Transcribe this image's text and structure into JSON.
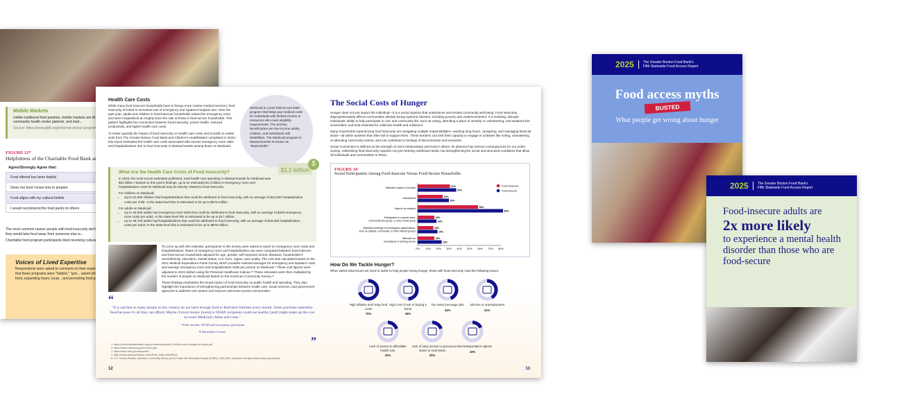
{
  "left_page": {
    "mobile_markets": {
      "title": "Mobile Markets",
      "text": "Unlike traditional food pantries, mobile markets are like... food directly into underserved communities, often foc... veterans, community health center patients, and stud...",
      "source": "Source: https://www.gbfb.org/what-we-do/our-programs/mobile-..."
    },
    "figure_label": "FIGURE 12*",
    "figure_title": "Helpfulness of the Charitable Food Bank and Community...",
    "table_header": "Agree/Strongly Agree that:",
    "rows": [
      "Food offered has been helpful",
      "Gives me food I know how to prepare",
      "Food aligns with my cultural beliefs",
      "I would recommend the food pantry to others"
    ],
    "text1": "The most common reason people with food insecurity don't... instead (60 percent). Of households with food insecurity that... are worried they would take food away from someone else w...",
    "text2": "Charitable food program participants liked receiving cultural... (79 percent), followed by proteins such as meat and fish (54...",
    "voices_title": "Voices of Lived Expertise",
    "voices_text": "Respondents were asked to comment on their experi... food programs, and how these services could be imp... commented that these programs were \"helpful,\" \"goo... asked what areas they would improve, responses foc... through providing more food, expanding hours, locat... and promoting food pantries to increase public aware..."
  },
  "page12": {
    "heading": "Health Care Costs",
    "p1": "While many food-insecure households have to forego more routine medical services, food insecurity is linked to increased use of emergency and inpatient hospital care. Over the past year, adults and children in food-insecure households visited the emergency room and were hospitalized at roughly twice the rate of those in food-secure households. This pattern highlights the connection between food insecurity, poorer health, reduced productivity, and higher health care costs.",
    "p2": "To better quantify the impact of food insecurity on health care costs and to build on earlier work from The Greater Boston Food Bank and Children's HealthWatch completed in 2018,⁷ this report estimated the health care costs associated with excess emergency room visits and hospitalizations due to food insecurity in Massachusetts among those on Medicaid.",
    "medicaid_note": "Medicaid is a joint federal and state program that helps pay medical costs for individuals with limited income or resources who meet eligibility requirements. The primary beneficiaries are low-income adults, children, and individuals with disabilities. The Medicaid program in Massachusetts is known as \"MassHealth.\"",
    "box_title": "What Are the Health Care Costs of Food Insecurity?",
    "box_amount": "$1.3 billion",
    "box_p1": "In 2023, the most recent estimates published, total health care spending in Massachusetts for Medicaid was $22 billion.⁸ Based on this year's findings, up to an estimated $1.3 billion in emergency room and hospitalization costs for Medicaid may be directly related to food insecurity.",
    "children_label": "For children on Medicaid:",
    "children_items": [
      "Up to 31,000 children had hospitalizations that could be attributed to food insecurity, with an average of $12,000 hospitalization costs per child. At the state-level this is estimated to be up to $373 million."
    ],
    "adults_label": "For adults on Medicaid:",
    "adults_items": [
      "Up to 40,000 adults had emergency room visits that could be attributed to food insecurity, with an average of $420 emergency room costs per adult. At the state-level this is estimated to be up to $17 million.",
      "Up to 48,700 adults had hospitalizations that could be attributed to food insecurity, with an average of $18,000 hospitalization costs per adult. At the state-level this is estimated to be up to $878 million."
    ],
    "p3": "To come up with this estimate, participants in this survey were asked to report on emergency room visits and hospitalizations. Rates of emergency room and hospitalization use were compared between food-insecure and food-secure households adjusted for age, gender, self-reported chronic diseases, householder's race/ethnicity, education, marital status, U.S.-born, region, and rurality. The cost was calculated based on the 2021 Medical Expenditure Panel Survey which provides national averages for emergency and inpatient costs and average emergency room and hospitalization visits per person on Medicaid.⁹ These cost figures were adjusted to 2023 dollars using the Personal Healthcare Indices.¹⁰ These estimates were then multiplied by the number of people on Medicaid based on the American Community Survey.¹¹",
    "p4": "These findings emphasize the broad impact of food insecurity on public health and spending. They also highlight the importance of strengthening partnerships between health care, social services, and government agencies to address root causes and improve outcomes across communities.",
    "quote": "\"It is sad that so many people in this country do not have enough food to feed their families every month. Some purchase unhealthy food because it's all they can afford. Maybe if more money [went] to SNAP, recipients could eat healthy [and] might make up the cost in lower Medicaid claims and costs.\"",
    "quote_attr": "- White mother, SNAP and food pantry participant",
    "quote_loc": "Barnstable County",
    "footnotes": [
      "https://childrenshealthwatch.org/wp-content/uploads/2.4-billion-cost-of-hunger-full-report.pdf",
      "https://www.chiamass.gov/hcs-time-apm",
      "https://meps.ahrq.gov/mepsweb/",
      "https://meps.ahrq.gov/about_meps/Price_Index.shtml#t1a3",
      "U.S. Census Bureau, American Community Survey (ACS) Public Use Microdata Sample (PUMS), 2018-2022, accessed via https://data.census.gov/sedsci/"
    ],
    "page_number": "12"
  },
  "page13": {
    "title": "The Social Costs of Hunger",
    "p1": "Hunger does not just impact the individual—it is a social injustice that undermines and erodes community well-being. Food insecurity disproportionately affects communities already facing systemic barriers, including poverty and underinvestment. It is isolating, disrupts individuals' ability to fully participate in civic and community life, such as voting, attending a place of worship or volunteering, and weakens the social fabric and trust essential for collective health and resilience.",
    "p2": "Many households experiencing food insecurity are navigating multiple responsibilities—working long hours, caregiving, and managing financial strain—all within systems that often fail to support them. These burdens can limit their capacity to engage in activities like voting, volunteering, or attending community events, and can contribute to feelings of disconnection and exclusion.",
    "p3": "Social Connection is defined as the strength of one's relationships and trust in others. Its absence has serious consequences for our entire society. Addressing food insecurity requires not just meeting nutritional needs, but strengthening the social and structural conditions that allow all individuals and communities to thrive.",
    "tackle_title": "How Do We Tackle Hunger?",
    "tackle_intro": "When asked what issues we need to tackle to help people facing hunger, those with food insecurity cited the following issues:",
    "issues": [
      {
        "label": "High inflation and rising food costs",
        "pct": "70%",
        "value": 70,
        "icon": "rising-cost-icon"
      },
      {
        "label": "High cost of rent or buying a home",
        "pct": "49%",
        "value": 49,
        "icon": "house-icon"
      },
      {
        "label": "Too many low-wage jobs",
        "pct": "44%",
        "value": 44,
        "icon": "paycheck-icon"
      },
      {
        "label": "Job loss or unemployment",
        "pct": "41%",
        "value": 41,
        "icon": "briefcase-icon"
      },
      {
        "label": "Lack of access to affordable health care",
        "pct": "20%",
        "value": 20,
        "icon": "medical-form-icon"
      },
      {
        "label": "Lack of easy access to grocery stores in rural areas",
        "pct": "20%",
        "value": 20,
        "icon": "storefront-icon"
      },
      {
        "label": "Limited transportation options",
        "pct": "18%",
        "value": 18,
        "icon": "truck-icon"
      }
    ],
    "page_number": "13"
  },
  "chart_data": {
    "type": "bar",
    "orientation": "horizontal",
    "figure_label": "FIGURE 10",
    "title": "Social Participation Among Food-Insecure Versus Food-Secure Households",
    "categories": [
      "Attended a place of worship",
      "Volunteered",
      "Voted in an election",
      "Participated in a sports team, community arts group, or other social group",
      "Attended meetings of nonreligious organizations, such as political, community, or other interest groups",
      "Attended an educational or training course"
    ],
    "series": [
      {
        "name": "Food-Insecure",
        "values": [
          31,
          24,
          58,
          16,
          15,
          16
        ],
        "color": "#d0203f"
      },
      {
        "name": "Food-Secure",
        "values": [
          37,
          30,
          82,
          18,
          19,
          23
        ],
        "color": "#12128a"
      }
    ],
    "xlim": [
      0,
      80
    ],
    "xticks": [
      "0%",
      "10%",
      "20%",
      "30%",
      "40%",
      "50%",
      "60%",
      "70%",
      "80%"
    ],
    "legend": "top-right",
    "grid": false
  },
  "cover1": {
    "year": "2025",
    "org_line1": "The Greater Boston Food Bank's",
    "org_line2": "Fifth Statewide Food Access Report",
    "title": "Food access myths",
    "stamp": "BUSTED",
    "subtitle": "What people get wrong about hunger"
  },
  "cover2": {
    "year": "2025",
    "org_line1": "The Greater Boston Food Bank's",
    "org_line2": "Fifth Statewide Food Access Report",
    "line1": "Food-insecure adults are",
    "big": "2x more likely",
    "line2": "to experience a mental health disorder than those who are food-secure"
  },
  "colors": {
    "navy": "#0d0d8a",
    "red": "#d0203f",
    "green": "#9bb560",
    "lime": "#b5d334",
    "cover_blue": "#7d9ee0"
  }
}
